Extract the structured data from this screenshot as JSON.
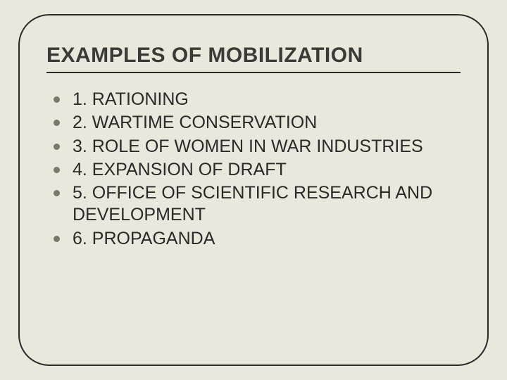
{
  "slide": {
    "background_color": "#eae7dc",
    "frame_border_color": "#2a2a2a",
    "frame_border_width": 2.5,
    "frame_border_radius": 44,
    "title": {
      "text": "EXAMPLES OF MOBILIZATION",
      "fontsize": 30,
      "font_weight": 700,
      "color": "#3a3a36",
      "underline_color": "#2a2a2a",
      "underline_width": 2.5
    },
    "bullet_color": "#7a786a",
    "bullet_diameter": 9,
    "item_fontsize": 25,
    "item_color": "#2a2a28",
    "items": [
      {
        "text": "1. RATIONING"
      },
      {
        "text": "2. WARTIME CONSERVATION"
      },
      {
        "text": "3. ROLE OF WOMEN IN WAR INDUSTRIES"
      },
      {
        "text": "4. EXPANSION OF DRAFT"
      },
      {
        "text": "5. OFFICE OF SCIENTIFIC RESEARCH AND DEVELOPMENT"
      },
      {
        "text": "6. PROPAGANDA"
      }
    ]
  }
}
